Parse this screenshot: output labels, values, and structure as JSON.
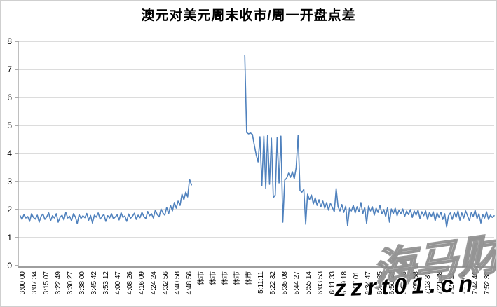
{
  "window": {
    "title": "澳元对美元周末收市/周一开盘点差"
  },
  "colors": {
    "line": "#4f81bd",
    "grid": "#b8b8b8",
    "axis_bar": "#9e9e9e",
    "axis_line": "#7f7f7f",
    "tick": "#595959",
    "text": "#000000",
    "watermark_blue": "#4a86c8"
  },
  "watermarks": {
    "brand": "海马财经",
    "site": "zzrt01.cn"
  },
  "chart_data": {
    "type": "line",
    "title": "澳元对美元周末收市/周一开盘点差",
    "xlabel": "",
    "ylabel": "",
    "ylim": [
      0,
      8
    ],
    "yticks": [
      0,
      1,
      2,
      3,
      4,
      5,
      6,
      7,
      8
    ],
    "grid": true,
    "legend": false,
    "line_color": "#4f81bd",
    "gap_meaning": "休市 = market closed, no data between 4:48:56 and 5:11:11",
    "x_tick_labels": [
      "3:00:00",
      "3:07:34",
      "3:15:07",
      "3:22:49",
      "3:30:27",
      "3:38:00",
      "3:45:42",
      "3:53:12",
      "4:00:47",
      "4:08:26",
      "4:16:09",
      "4:24:24",
      "4:32:56",
      "4:40:58",
      "4:48:56",
      "休市",
      "休市",
      "休市",
      "休市",
      "休市",
      "5:11:11",
      "5:22:32",
      "5:35:08",
      "5:44:27",
      "5:55:14",
      "6:03:53",
      "6:11:33",
      "6:19:18",
      "6:27:01",
      "6:34:47",
      "6:42:35",
      "6:50:24",
      "6:58:16",
      "7:05:58",
      "7:13:37",
      "7:21:28",
      "7:29:25",
      "7:37:04",
      "7:44:46",
      "7:52:33"
    ],
    "segments": [
      {
        "x_start": 0.004,
        "x_step": 0.004,
        "values": [
          1.78,
          1.65,
          1.82,
          1.7,
          1.75,
          1.58,
          1.85,
          1.72,
          1.66,
          1.8,
          1.55,
          1.76,
          1.84,
          1.65,
          1.74,
          1.88,
          1.6,
          1.78,
          1.7,
          1.85,
          1.55,
          1.73,
          1.8,
          1.63,
          1.9,
          1.7,
          1.76,
          1.6,
          1.85,
          1.74,
          1.5,
          1.82,
          1.68,
          1.78,
          1.71,
          1.86,
          1.62,
          1.79,
          1.52,
          1.8,
          1.73,
          1.88,
          1.66,
          1.75,
          1.83,
          1.58,
          1.78,
          1.7,
          1.85,
          1.67,
          1.74,
          1.81,
          1.63,
          1.89,
          1.72,
          1.77,
          1.58,
          1.84,
          1.69,
          1.76,
          1.87,
          1.65,
          1.8,
          1.71,
          1.9,
          1.75,
          1.68,
          1.93,
          1.78,
          1.85,
          1.7,
          1.98,
          1.82,
          1.74,
          2.02,
          1.88,
          1.8,
          2.08,
          1.85,
          2.15,
          1.95,
          2.25,
          2.05,
          2.3,
          2.15,
          2.55,
          2.35,
          2.62,
          2.45,
          3.08,
          2.88
        ]
      },
      {
        "x_start": 0.476,
        "x_step": 0.004,
        "values": [
          7.5,
          4.75,
          4.7,
          4.73,
          4.68,
          4.3,
          3.95,
          3.7,
          4.6,
          2.85,
          4.62,
          2.75,
          4.65,
          2.9,
          4.55,
          2.42,
          2.52,
          4.58,
          2.95,
          4.62,
          1.55,
          3.05,
          3.12,
          3.3,
          3.15,
          3.35,
          3.1,
          3.5,
          4.65,
          2.68,
          2.62,
          2.72,
          1.48,
          2.55,
          2.35,
          2.52,
          2.2,
          2.42,
          2.15,
          2.35,
          2.1,
          2.3,
          2.05,
          2.25,
          1.98,
          2.22,
          2.08,
          1.92,
          2.75,
          2.1,
          1.95,
          2.18,
          1.9,
          2.12,
          1.42,
          2.05,
          1.95,
          2.15,
          1.88,
          2.1,
          1.92,
          2.25,
          1.85,
          2.08,
          1.5,
          2.12,
          1.95,
          2.1,
          1.8,
          2.05,
          1.9,
          2.15,
          1.85,
          2.0,
          1.75,
          2.08,
          1.55,
          2.02,
          1.85,
          2.05,
          1.78,
          1.98,
          1.85,
          2.02,
          1.75,
          1.95,
          1.82,
          2.0,
          1.72,
          1.95,
          1.8,
          1.98,
          1.68,
          1.92,
          1.78,
          1.95,
          1.65,
          1.9,
          1.75,
          1.92,
          1.6,
          1.88,
          1.72,
          1.9,
          1.65,
          1.85,
          1.38,
          1.78,
          1.88,
          1.65,
          1.9,
          1.72,
          1.95,
          1.62,
          1.88,
          1.7,
          1.95,
          1.78,
          1.6,
          1.9,
          1.75,
          1.98,
          1.68,
          1.85,
          1.52,
          1.82,
          1.7,
          1.92,
          1.65,
          1.8,
          1.72,
          1.78
        ]
      }
    ]
  }
}
